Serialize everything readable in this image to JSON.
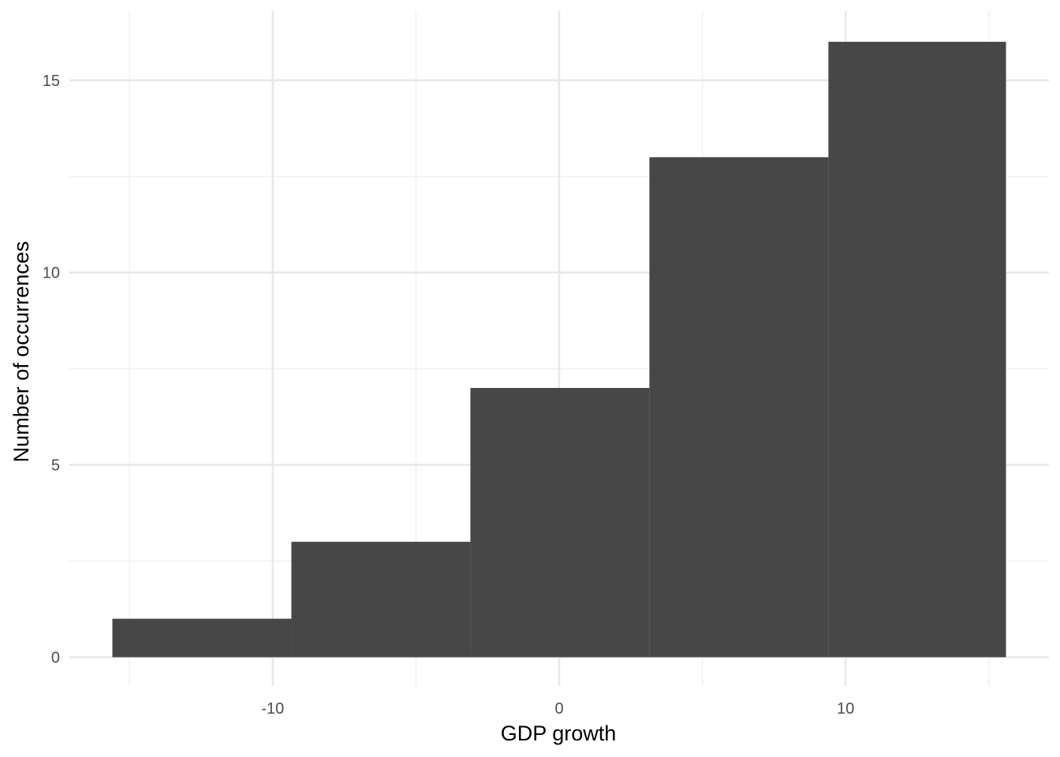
{
  "chart_data": {
    "type": "bar",
    "xlabel": "GDP growth",
    "ylabel": "Number of occurrences",
    "xlim": [
      -17.1,
      17.1
    ],
    "ylim": [
      -0.75,
      16.8
    ],
    "x_ticks": [
      -10,
      0,
      10
    ],
    "x_minor_ticks": [
      -15,
      -5,
      5,
      15
    ],
    "y_ticks": [
      0,
      5,
      10,
      15
    ],
    "y_minor_ticks": [
      2.5,
      7.5,
      12.5
    ],
    "grid": true,
    "bins": [
      {
        "x0": -15.6,
        "x1": -9.35,
        "count": 1
      },
      {
        "x0": -9.35,
        "x1": -3.1,
        "count": 3
      },
      {
        "x0": -3.1,
        "x1": 3.15,
        "count": 7
      },
      {
        "x0": 3.15,
        "x1": 9.4,
        "count": 13
      },
      {
        "x0": 9.4,
        "x1": 15.6,
        "count": 16
      }
    ],
    "colors": {
      "bar": "#474747",
      "grid_major": "#e8e8e8",
      "grid_minor": "#f0f0f0",
      "background": "#ffffff"
    }
  }
}
